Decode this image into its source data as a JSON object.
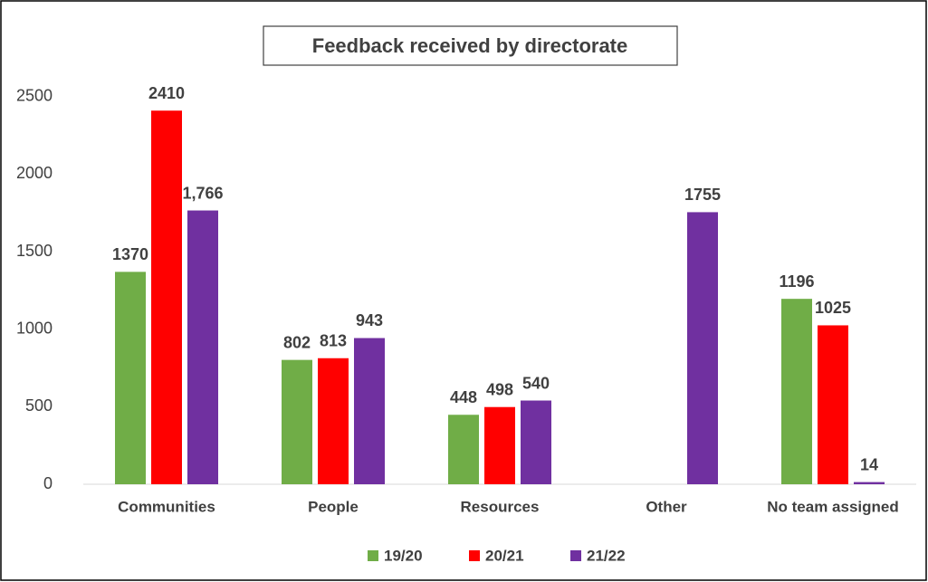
{
  "chart_data": {
    "type": "bar",
    "title": "Feedback received by directorate",
    "categories": [
      "Communities",
      "People",
      "Resources",
      "Other",
      "No team assigned"
    ],
    "series": [
      {
        "name": "19/20",
        "color": "#70ad47",
        "values": [
          1370,
          802,
          448,
          null,
          1196
        ]
      },
      {
        "name": "20/21",
        "color": "#ff0000",
        "values": [
          2410,
          813,
          498,
          null,
          1025
        ]
      },
      {
        "name": "21/22",
        "color": "#7030a0",
        "values": [
          1766,
          943,
          540,
          1755,
          14
        ],
        "value_labels": [
          "1,766",
          "943",
          "540",
          "1755",
          "14"
        ]
      }
    ],
    "ylim": [
      0,
      2750
    ],
    "yticks": [
      0,
      500,
      1000,
      1500,
      2000,
      2500
    ],
    "grid": false,
    "legend": "bottom"
  }
}
